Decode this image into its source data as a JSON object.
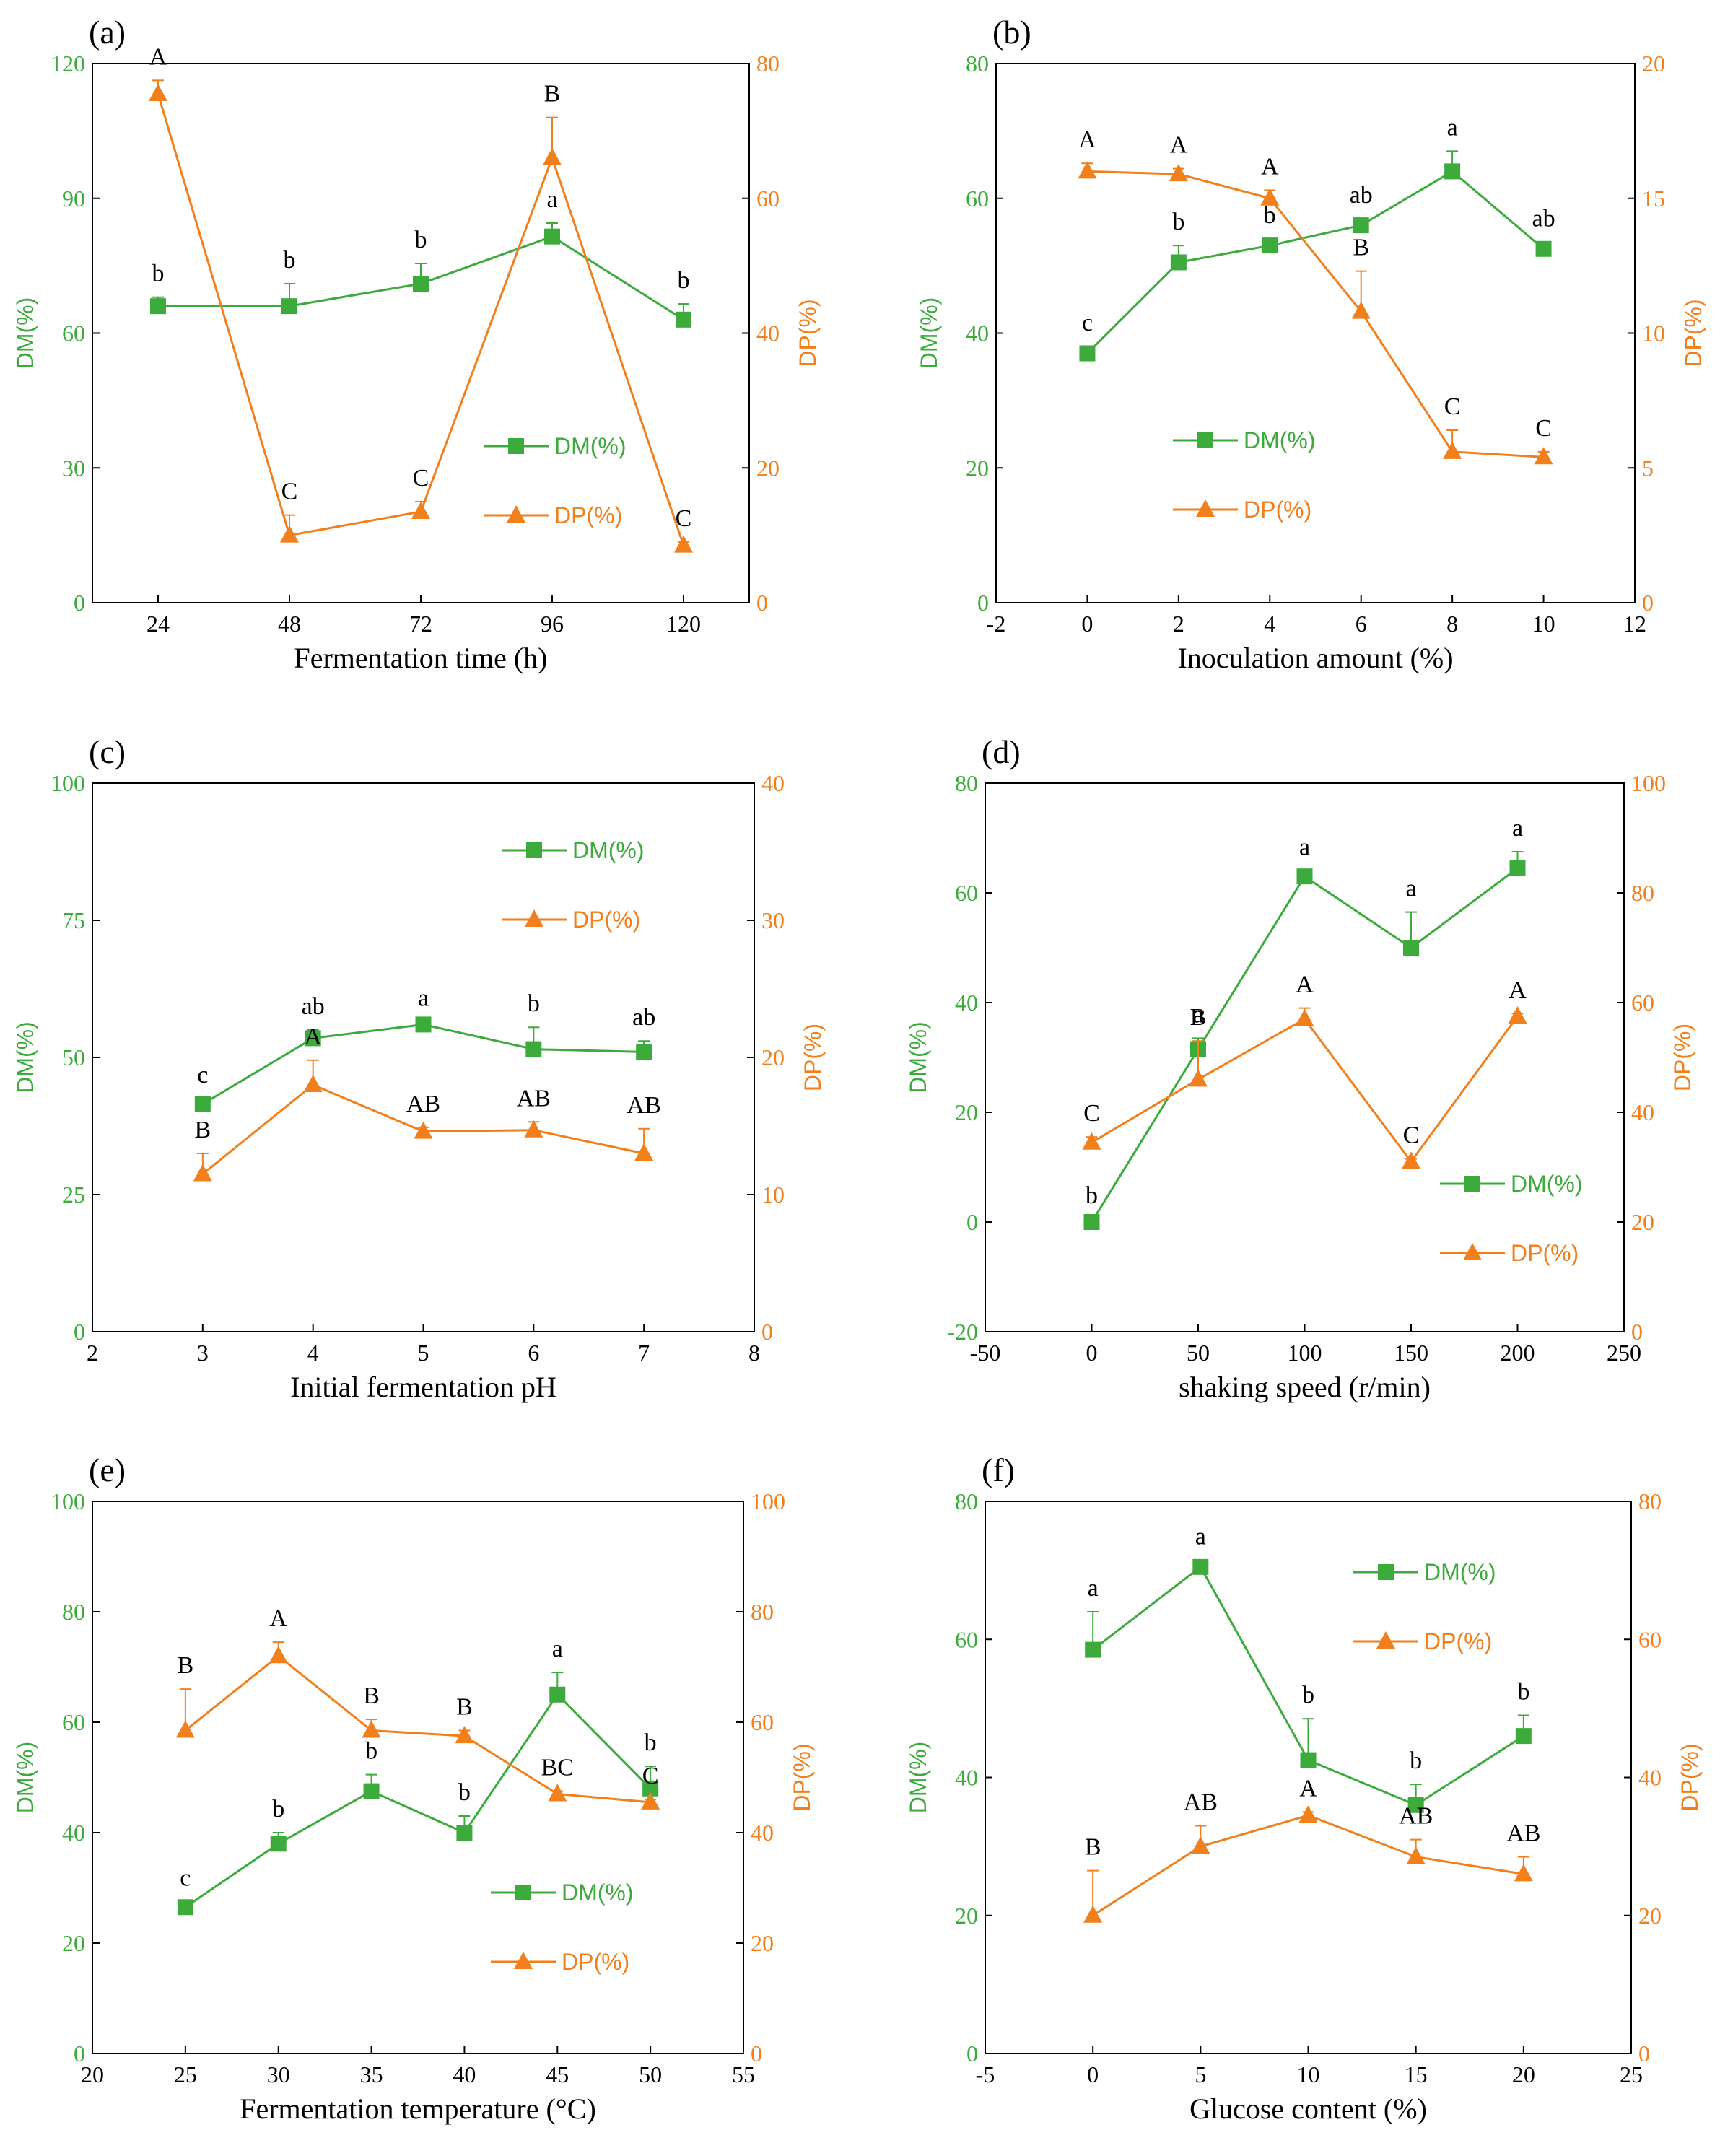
{
  "colors": {
    "dm": "#3cab3c",
    "dp": "#f07f1c",
    "axis": "#000000"
  },
  "chart_data": [
    {
      "type": "line",
      "panel": "(a)",
      "xlabel": "Fermentation time (h)",
      "ylabel": "DM(%)",
      "ylabel2": "DP(%)",
      "xlim": [
        12,
        132
      ],
      "xticks": [
        24,
        48,
        72,
        96,
        120
      ],
      "ylim": [
        0,
        120
      ],
      "yticks": [
        0,
        30,
        60,
        90,
        120
      ],
      "y2lim": [
        0,
        80
      ],
      "y2ticks": [
        0,
        20,
        40,
        60,
        80
      ],
      "legend": {
        "position": "middle-right",
        "dm_label": "DM(%)",
        "dp_label": "DP(%)"
      },
      "series": [
        {
          "name": "DM(%)",
          "axis": "left",
          "x": [
            24,
            48,
            72,
            96,
            120
          ],
          "values": [
            66,
            66,
            71,
            81.5,
            63
          ],
          "err": [
            2,
            5,
            4.5,
            3,
            3.5
          ],
          "labels": [
            "b",
            "b",
            "b",
            "a",
            "b"
          ]
        },
        {
          "name": "DP(%)",
          "axis": "right",
          "x": [
            24,
            48,
            72,
            96,
            120
          ],
          "values": [
            75.5,
            10,
            13.5,
            66,
            8.5
          ],
          "err": [
            2,
            3,
            1.5,
            6,
            0.5
          ],
          "labels": [
            "A",
            "C",
            "C",
            "B",
            "C"
          ]
        }
      ]
    },
    {
      "type": "line",
      "panel": "(b)",
      "xlabel": "Inoculation amount (%)",
      "ylabel": "DM(%)",
      "ylabel2": "DP(%)",
      "xlim": [
        -2,
        12
      ],
      "xticks": [
        -2,
        0,
        2,
        4,
        6,
        8,
        10,
        12
      ],
      "ylim": [
        0,
        80
      ],
      "yticks": [
        0,
        20,
        40,
        60,
        80
      ],
      "y2lim": [
        0,
        20
      ],
      "y2ticks": [
        0,
        5,
        10,
        15,
        20
      ],
      "legend": {
        "position": "middle-left",
        "dm_label": "DM(%)",
        "dp_label": "DP(%)"
      },
      "series": [
        {
          "name": "DM(%)",
          "axis": "left",
          "x": [
            0,
            2,
            4,
            6,
            8,
            10
          ],
          "values": [
            37,
            50.5,
            53,
            56,
            64,
            52.5
          ],
          "err": [
            1,
            2.5,
            1,
            1,
            3,
            1
          ],
          "labels": [
            "c",
            "b",
            "b",
            "ab",
            "a",
            "ab"
          ]
        },
        {
          "name": "DP(%)",
          "axis": "right",
          "x": [
            0,
            2,
            4,
            6,
            8,
            10
          ],
          "values": [
            16,
            15.9,
            15,
            10.8,
            5.6,
            5.4
          ],
          "err": [
            0.3,
            0.2,
            0.3,
            1.5,
            0.8,
            0.2
          ],
          "labels": [
            "A",
            "A",
            "A",
            "B",
            "C",
            "C"
          ]
        }
      ]
    },
    {
      "type": "line",
      "panel": "(c)",
      "xlabel": "Initial fermentation pH",
      "ylabel": "DM(%)",
      "ylabel2": "DP(%)",
      "xlim": [
        2,
        8
      ],
      "xticks": [
        2,
        3,
        4,
        5,
        6,
        7,
        8
      ],
      "ylim": [
        0,
        100
      ],
      "yticks": [
        0,
        25,
        50,
        75,
        100
      ],
      "y2lim": [
        0,
        40
      ],
      "y2ticks": [
        0,
        10,
        20,
        30,
        40
      ],
      "legend": {
        "position": "top-right",
        "dm_label": "DM(%)",
        "dp_label": "DP(%)"
      },
      "series": [
        {
          "name": "DM(%)",
          "axis": "left",
          "x": [
            3,
            4,
            5,
            6,
            7
          ],
          "values": [
            41.5,
            53.5,
            56,
            51.5,
            51
          ],
          "err": [
            1,
            1.5,
            0.5,
            4,
            2
          ],
          "labels": [
            "c",
            "ab",
            "a",
            "b",
            "ab"
          ]
        },
        {
          "name": "DP(%)",
          "axis": "right",
          "x": [
            3,
            4,
            5,
            6,
            7
          ],
          "values": [
            11.5,
            18,
            14.6,
            14.7,
            13
          ],
          "err": [
            1.5,
            1.8,
            0.3,
            0.6,
            1.8
          ],
          "labels": [
            "B",
            "A",
            "AB",
            "AB",
            "AB"
          ]
        }
      ]
    },
    {
      "type": "line",
      "panel": "(d)",
      "xlabel": "shaking speed (r/min)",
      "ylabel": "DM(%)",
      "ylabel2": "DP(%)",
      "xlim": [
        -50,
        250
      ],
      "xticks": [
        -50,
        0,
        50,
        100,
        150,
        200,
        250
      ],
      "ylim": [
        -20,
        80
      ],
      "yticks": [
        -20,
        0,
        20,
        40,
        60,
        80
      ],
      "y2lim": [
        0,
        100
      ],
      "y2ticks": [
        0,
        20,
        40,
        60,
        80,
        100
      ],
      "legend": {
        "position": "bottom-right",
        "dm_label": "DM(%)",
        "dp_label": "DP(%)"
      },
      "series": [
        {
          "name": "DM(%)",
          "axis": "left",
          "x": [
            0,
            50,
            100,
            150,
            200
          ],
          "values": [
            0,
            31.5,
            63,
            50,
            64.5
          ],
          "err": [
            0.5,
            2,
            1,
            6.5,
            3
          ],
          "labels": [
            "b",
            "a",
            "a",
            "a",
            "a"
          ]
        },
        {
          "name": "DP(%)",
          "axis": "right",
          "x": [
            0,
            50,
            100,
            150,
            200
          ],
          "values": [
            34.5,
            46,
            57,
            31,
            57.5
          ],
          "err": [
            1,
            7,
            2,
            0.5,
            0.5
          ],
          "labels": [
            "C",
            "B",
            "A",
            "C",
            "A"
          ]
        }
      ]
    },
    {
      "type": "line",
      "panel": "(e)",
      "xlabel": "Fermentation temperature (°C)",
      "ylabel": "DM(%)",
      "ylabel2": "DP(%)",
      "xlim": [
        20,
        55
      ],
      "xticks": [
        20,
        25,
        30,
        35,
        40,
        45,
        50,
        55
      ],
      "ylim": [
        0,
        100
      ],
      "yticks": [
        0,
        20,
        40,
        60,
        80,
        100
      ],
      "y2lim": [
        0,
        100
      ],
      "y2ticks": [
        0,
        20,
        40,
        60,
        80,
        100
      ],
      "legend": {
        "position": "bottom-right",
        "dm_label": "DM(%)",
        "dp_label": "DP(%)"
      },
      "series": [
        {
          "name": "DM(%)",
          "axis": "left",
          "x": [
            25,
            30,
            35,
            40,
            45,
            50
          ],
          "values": [
            26.5,
            38,
            47.5,
            40,
            65,
            48
          ],
          "err": [
            1,
            2,
            3,
            3,
            4,
            4
          ],
          "labels": [
            "c",
            "b",
            "b",
            "b",
            "a",
            "b"
          ]
        },
        {
          "name": "DP(%)",
          "axis": "right",
          "x": [
            25,
            30,
            35,
            40,
            45,
            50
          ],
          "values": [
            58.5,
            72,
            58.5,
            57.5,
            47,
            45.5
          ],
          "err": [
            7.5,
            2.5,
            2,
            1,
            0.5,
            0.5
          ],
          "labels": [
            "B",
            "A",
            "B",
            "B",
            "BC",
            "C"
          ]
        }
      ]
    },
    {
      "type": "line",
      "panel": "(f)",
      "xlabel": "Glucose content (%)",
      "ylabel": "DM(%)",
      "ylabel2": "DP(%)",
      "xlim": [
        -5,
        25
      ],
      "xticks": [
        -5,
        0,
        5,
        10,
        15,
        20,
        25
      ],
      "ylim": [
        0,
        80
      ],
      "yticks": [
        0,
        20,
        40,
        60,
        80
      ],
      "y2lim": [
        0,
        80
      ],
      "y2ticks": [
        0,
        20,
        40,
        60,
        80
      ],
      "legend": {
        "position": "top-right",
        "dm_label": "DM(%)",
        "dp_label": "DP(%)"
      },
      "series": [
        {
          "name": "DM(%)",
          "axis": "left",
          "x": [
            0,
            5,
            10,
            15,
            20
          ],
          "values": [
            58.5,
            70.5,
            42.5,
            36,
            46
          ],
          "err": [
            5.5,
            1,
            6,
            3,
            3
          ],
          "labels": [
            "a",
            "a",
            "b",
            "b",
            "b"
          ]
        },
        {
          "name": "DP(%)",
          "axis": "right",
          "x": [
            0,
            5,
            10,
            15,
            20
          ],
          "values": [
            20,
            30,
            34.5,
            28.5,
            26
          ],
          "err": [
            6.5,
            3,
            0.5,
            2.5,
            2.5
          ],
          "labels": [
            "B",
            "AB",
            "A",
            "AB",
            "AB"
          ]
        }
      ]
    }
  ]
}
